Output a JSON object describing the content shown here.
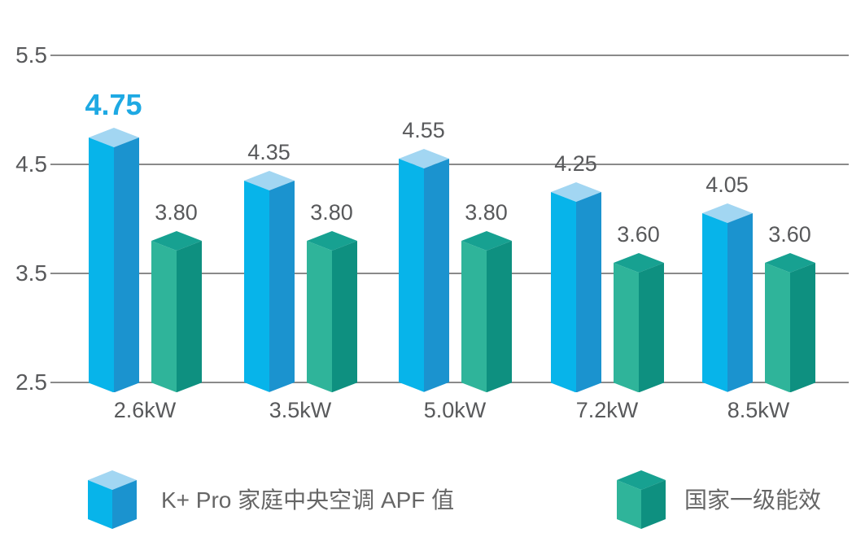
{
  "chart_data": {
    "type": "bar",
    "title": "",
    "categories": [
      "2.6kW",
      "3.5kW",
      "5.0kW",
      "7.2kW",
      "8.5kW"
    ],
    "series": [
      {
        "name": "K+ Pro 家庭中央空调 APF 值",
        "color_key": "blue",
        "values": [
          4.75,
          4.35,
          4.55,
          4.25,
          4.05
        ],
        "labels": [
          "4.75",
          "4.35",
          "4.55",
          "4.25",
          "4.05"
        ]
      },
      {
        "name": "国家一级能效",
        "color_key": "green",
        "values": [
          3.8,
          3.8,
          3.8,
          3.6,
          3.6
        ],
        "labels": [
          "3.80",
          "3.80",
          "3.80",
          "3.60",
          "3.60"
        ]
      }
    ],
    "highlight": {
      "series": 0,
      "index": 0,
      "label": "4.75"
    },
    "y_axis": {
      "ticks": [
        "5.5",
        "4.5",
        "3.5",
        "2.5"
      ],
      "tick_values": [
        5.5,
        4.5,
        3.5,
        2.5
      ],
      "min": 2.5,
      "max": 5.5
    },
    "grid": true,
    "bar_style": "3d-cuboid",
    "legend_position": "bottom"
  },
  "colors": {
    "blue": {
      "top": "#a2d6f2",
      "left": "#07b4ea",
      "right": "#1b93cf"
    },
    "green": {
      "top": "#17a191",
      "left": "#2fb49a",
      "right": "#0e9080"
    },
    "highlight_label": "#1ea9e3",
    "value_label": "#58595b",
    "axis_label": "#58595b",
    "legend_text": "#666666",
    "gridline": "#8a8a8a",
    "background": "#ffffff"
  },
  "legend": {
    "items": [
      {
        "label": "K+ Pro 家庭中央空调 APF 值",
        "color_key": "blue"
      },
      {
        "label": "国家一级能效",
        "color_key": "green"
      }
    ]
  }
}
